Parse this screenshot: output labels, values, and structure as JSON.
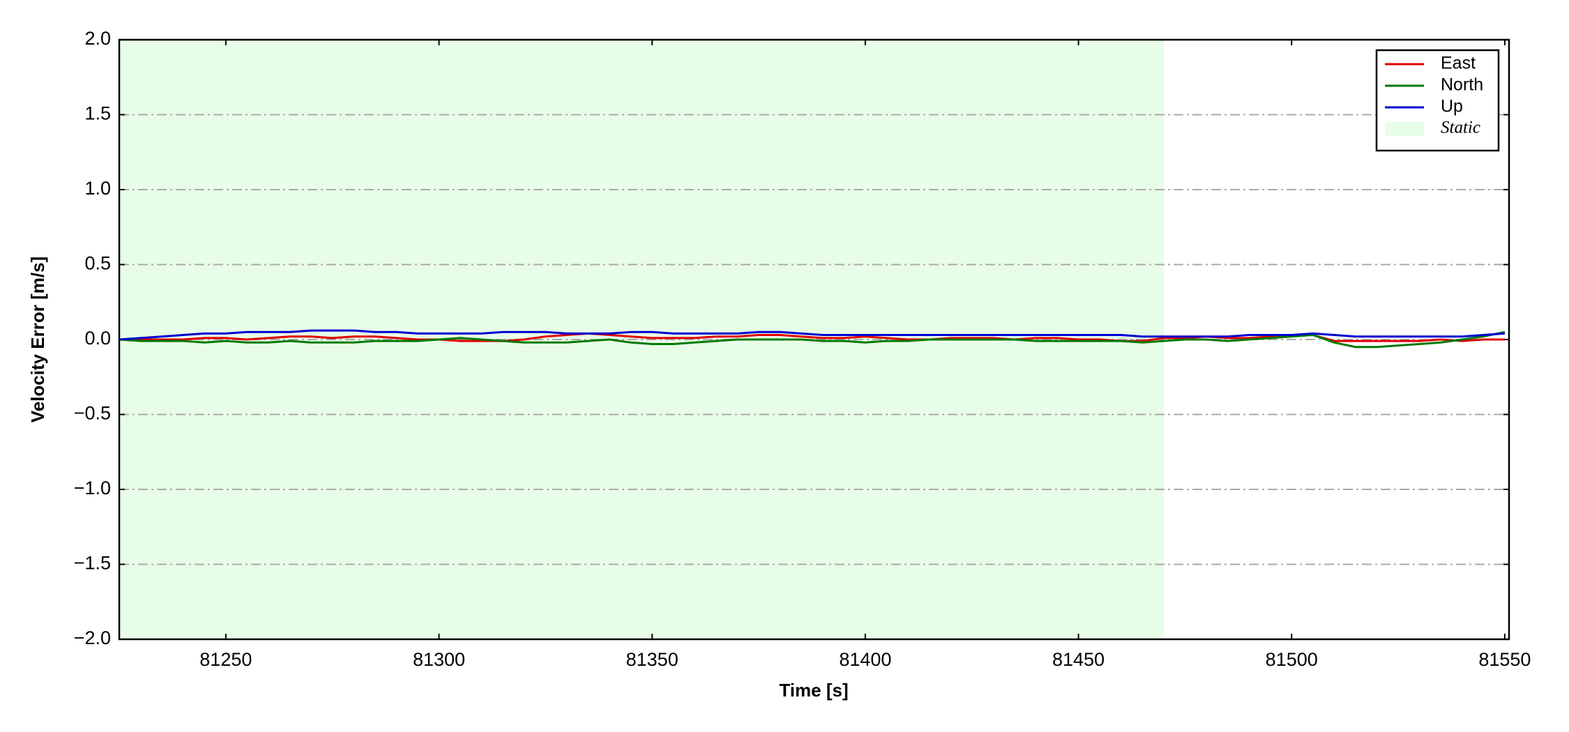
{
  "chart_data": {
    "type": "line",
    "xlabel": "Time [s]",
    "ylabel": "Velocity Error [m/s]",
    "x": [
      81225,
      81230,
      81235,
      81240,
      81245,
      81250,
      81255,
      81260,
      81265,
      81270,
      81275,
      81280,
      81285,
      81290,
      81295,
      81300,
      81305,
      81310,
      81315,
      81320,
      81325,
      81330,
      81335,
      81340,
      81345,
      81350,
      81355,
      81360,
      81365,
      81370,
      81375,
      81380,
      81385,
      81390,
      81395,
      81400,
      81405,
      81410,
      81415,
      81420,
      81425,
      81430,
      81435,
      81440,
      81445,
      81450,
      81455,
      81460,
      81465,
      81470,
      81475,
      81480,
      81485,
      81490,
      81495,
      81500,
      81505,
      81510,
      81515,
      81520,
      81525,
      81530,
      81535,
      81540,
      81545,
      81550
    ],
    "series": [
      {
        "name": "East",
        "color": "#e00000",
        "values": [
          0,
          0,
          0,
          0,
          0.01,
          0.01,
          0,
          0.01,
          0.02,
          0.02,
          0.01,
          0.02,
          0.02,
          0.01,
          0,
          0,
          -0.01,
          -0.01,
          -0.01,
          0,
          0.02,
          0.03,
          0.04,
          0.03,
          0.02,
          0.01,
          0.01,
          0.01,
          0.02,
          0.02,
          0.03,
          0.03,
          0.02,
          0.01,
          0.01,
          0.02,
          0.01,
          0,
          0,
          0.01,
          0.01,
          0.01,
          0,
          0.01,
          0.01,
          0,
          0,
          -0.01,
          -0.01,
          0.01,
          0.01,
          0.02,
          0.01,
          0.01,
          0.02,
          0.03,
          0.03,
          -0.01,
          -0.01,
          -0.01,
          -0.01,
          -0.01,
          0,
          -0.01,
          0,
          0
        ]
      },
      {
        "name": "North",
        "color": "#007a00",
        "values": [
          0,
          -0.01,
          -0.01,
          -0.01,
          -0.02,
          -0.01,
          -0.02,
          -0.02,
          -0.01,
          -0.02,
          -0.02,
          -0.02,
          -0.01,
          -0.01,
          -0.01,
          0,
          0.01,
          0,
          -0.01,
          -0.02,
          -0.02,
          -0.02,
          -0.01,
          0,
          -0.02,
          -0.03,
          -0.03,
          -0.02,
          -0.01,
          0,
          0,
          0,
          0,
          -0.01,
          -0.01,
          -0.02,
          -0.01,
          -0.01,
          0,
          0,
          0,
          0,
          0,
          -0.01,
          -0.01,
          -0.01,
          -0.01,
          -0.01,
          -0.02,
          -0.01,
          0,
          0,
          -0.01,
          0,
          0.01,
          0.02,
          0.03,
          -0.02,
          -0.05,
          -0.05,
          -0.04,
          -0.03,
          -0.02,
          0,
          0.02,
          0.05
        ]
      },
      {
        "name": "Up",
        "color": "#0000d0",
        "values": [
          0,
          0.01,
          0.02,
          0.03,
          0.04,
          0.04,
          0.05,
          0.05,
          0.05,
          0.06,
          0.06,
          0.06,
          0.05,
          0.05,
          0.04,
          0.04,
          0.04,
          0.04,
          0.05,
          0.05,
          0.05,
          0.04,
          0.04,
          0.04,
          0.05,
          0.05,
          0.04,
          0.04,
          0.04,
          0.04,
          0.05,
          0.05,
          0.04,
          0.03,
          0.03,
          0.03,
          0.03,
          0.03,
          0.03,
          0.03,
          0.03,
          0.03,
          0.03,
          0.03,
          0.03,
          0.03,
          0.03,
          0.03,
          0.02,
          0.02,
          0.02,
          0.02,
          0.02,
          0.03,
          0.03,
          0.03,
          0.04,
          0.03,
          0.02,
          0.02,
          0.02,
          0.02,
          0.02,
          0.02,
          0.03,
          0.04
        ]
      }
    ],
    "shaded_regions": [
      {
        "name": "Static",
        "start": 81225,
        "end": 81470,
        "color": "#e8fde8"
      }
    ],
    "xlim": [
      81225,
      81551
    ],
    "xticks": [
      81250,
      81300,
      81350,
      81400,
      81450,
      81500,
      81550
    ],
    "ylim": [
      -2,
      2
    ],
    "yticks": [
      {
        "value": -2,
        "label": "−2.0"
      },
      {
        "value": -1.5,
        "label": "−1.5"
      },
      {
        "value": -1,
        "label": "−1.0"
      },
      {
        "value": -0.5,
        "label": "−0.5"
      },
      {
        "value": 0,
        "label": "0.0"
      },
      0.5,
      {
        "value": 1,
        "label": "1.0"
      },
      1.5,
      {
        "value": 2,
        "label": "2.0"
      }
    ],
    "grid": true,
    "legend": "upper right"
  }
}
